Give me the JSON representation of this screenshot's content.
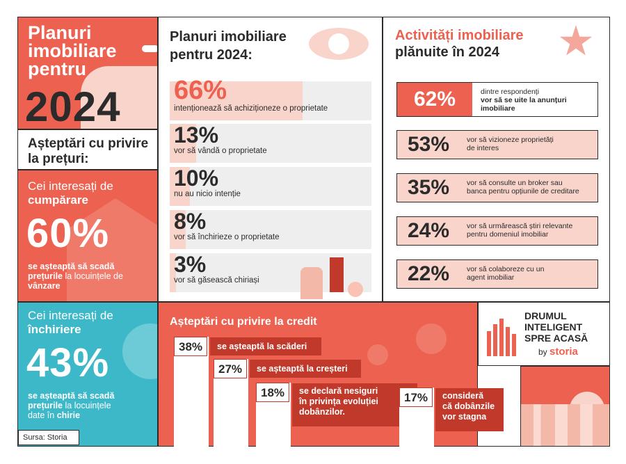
{
  "hero": {
    "title": "Planuri imobiliare pentru",
    "year": "2024"
  },
  "expectations": {
    "title": "Așteptări cu privire la prețuri:",
    "buy": {
      "intro": "Cei interesați de",
      "intro_bold": "cumpărare",
      "pct": "60%",
      "t1": "se așteaptă să scadă",
      "t2": "prețurile",
      "t3": "la locuințele de",
      "t4": "vânzare"
    },
    "rent": {
      "intro": "Cei interesați de",
      "intro_bold": "închiriere",
      "pct": "43%",
      "t1": "se așteaptă să scadă",
      "t2": "prețurile",
      "t3": "la locuințele",
      "t4": "date în",
      "t5": "chirie"
    }
  },
  "source": "Sursa: Storia",
  "plans": {
    "title": "Planuri imobiliare pentru 2024:",
    "items": [
      {
        "pct": "66%",
        "text": "intenționează să achiziționeze o proprietate",
        "value": 66
      },
      {
        "pct": "13%",
        "text": "vor să vândă o proprietate",
        "value": 13
      },
      {
        "pct": "10%",
        "text": "nu au nicio intenție",
        "value": 10
      },
      {
        "pct": "8%",
        "text": "vor să închirieze o proprietate",
        "value": 8
      },
      {
        "pct": "3%",
        "text": "vor să găsească chiriași",
        "value": 3
      }
    ]
  },
  "activities": {
    "title_a": "Activități imobiliare",
    "title_b": "plănuite în 2024",
    "items": [
      {
        "pct": "62%",
        "lines": [
          "dintre respondenți",
          "vor să se uite la anunțuri",
          "imobiliare"
        ]
      },
      {
        "pct": "53%",
        "lines": [
          "vor să vizioneze proprietăți",
          "de interes"
        ]
      },
      {
        "pct": "35%",
        "lines": [
          "vor să consulte un broker sau",
          "banca pentru opțiunile de creditare"
        ]
      },
      {
        "pct": "24%",
        "lines": [
          "vor să urmărească știri relevante",
          "pentru domeniul imobiliar"
        ]
      },
      {
        "pct": "22%",
        "lines": [
          "vor să colaboreze cu un",
          "agent imobiliar"
        ]
      }
    ]
  },
  "credit": {
    "title": "Așteptări cu privire la credit",
    "items": [
      {
        "pct": "38%",
        "text": "se așteaptă la scăderi",
        "value": 38
      },
      {
        "pct": "27%",
        "text": "se așteaptă la creșteri",
        "value": 27
      },
      {
        "pct": "18%",
        "lines": [
          "se declară nesiguri",
          "în privința evoluției",
          "dobânzilor."
        ],
        "value": 18
      },
      {
        "pct": "17%",
        "lines": [
          "consideră",
          "că dobânzile",
          "vor stagna"
        ],
        "value": 17
      }
    ]
  },
  "brand": {
    "l1": "DRUMUL",
    "l2": "INTELIGENT",
    "l3": "SPRE ACASĂ",
    "by": "by",
    "name": "storia"
  },
  "colors": {
    "coral": "#ec6150",
    "dark_red": "#c0392b",
    "pink": "#f9d4cb",
    "teal": "#3cb8c9",
    "text": "#2b2b2b"
  }
}
